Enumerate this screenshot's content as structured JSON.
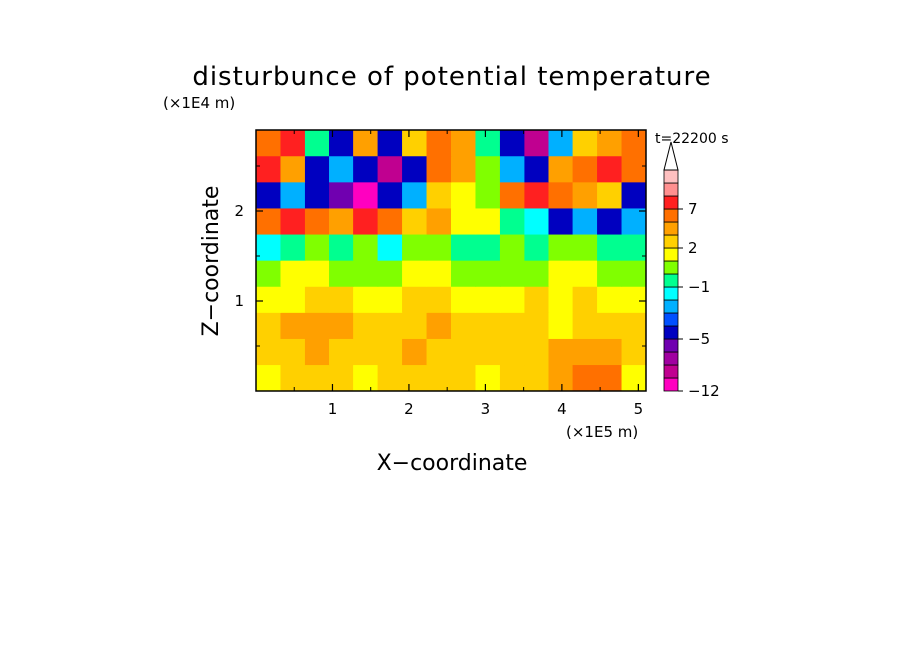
{
  "chart_data": {
    "type": "heatmap",
    "title": "disturbunce of potential temperature",
    "time_label": "t=22200 s",
    "xlabel": "X−coordinate",
    "ylabel": "Z−coordinate",
    "x_unit": "(×1E5 m)",
    "y_unit": "(×1E4 m)",
    "xlim": [
      0,
      5.1
    ],
    "ylim": [
      0,
      2.9
    ],
    "x_ticks": [
      1,
      2,
      3,
      4,
      5
    ],
    "y_ticks": [
      1,
      2
    ],
    "grid": false,
    "legend": "right colorbar",
    "colorbar": {
      "levels": [
        -12,
        -10,
        -8,
        -7,
        -5,
        -4,
        -3,
        -2,
        -1,
        0,
        1,
        2,
        3,
        5,
        7,
        9,
        11
      ],
      "colors": [
        "#ff00c0",
        "#c00090",
        "#a000a0",
        "#7000b0",
        "#0000c0",
        "#0050ff",
        "#00b0ff",
        "#00ffff",
        "#00ff90",
        "#80ff00",
        "#ffff00",
        "#ffd000",
        "#ffa000",
        "#ff7000",
        "#ff2020",
        "#ff9090",
        "#ffc0c0"
      ],
      "tick_labels": [
        "−12",
        "−5",
        "−1",
        "2",
        "7"
      ],
      "tick_values": [
        -12,
        -5,
        -1,
        2,
        7
      ],
      "extend_top": true
    },
    "grid_data": {
      "nx": 16,
      "nz": 10,
      "x_values": [
        0.16,
        0.48,
        0.8,
        1.11,
        1.43,
        1.75,
        2.07,
        2.39,
        2.71,
        3.03,
        3.35,
        3.67,
        3.98,
        4.3,
        4.62,
        4.94
      ],
      "z_values": [
        0.15,
        0.44,
        0.73,
        1.02,
        1.31,
        1.6,
        1.89,
        2.18,
        2.47,
        2.76
      ],
      "values": [
        [
          1,
          2,
          2,
          2,
          1,
          2,
          2,
          2,
          2,
          1,
          2,
          2,
          3,
          5,
          5,
          1
        ],
        [
          2,
          2,
          3,
          2,
          2,
          2,
          3,
          2,
          2,
          2,
          2,
          2,
          3,
          3,
          3,
          2
        ],
        [
          2,
          3,
          3,
          3,
          2,
          2,
          2,
          3,
          2,
          2,
          2,
          2,
          1,
          2,
          2,
          2
        ],
        [
          1,
          1,
          2,
          2,
          1,
          1,
          2,
          2,
          1,
          1,
          1,
          2,
          1,
          2,
          1,
          1
        ],
        [
          0,
          1,
          1,
          0,
          0,
          0,
          1,
          1,
          0,
          0,
          0,
          0,
          1,
          1,
          0,
          0
        ],
        [
          -2,
          -1,
          0,
          -1,
          0,
          -2,
          0,
          0,
          -1,
          -1,
          0,
          -1,
          0,
          0,
          -1,
          -1
        ],
        [
          5,
          7,
          5,
          3,
          7,
          5,
          2,
          3,
          1,
          1,
          -1,
          -2,
          -5,
          -3,
          -5,
          -3
        ],
        [
          -5,
          -3,
          -5,
          -7,
          -12,
          -5,
          -3,
          2,
          1,
          0,
          5,
          7,
          5,
          3,
          2,
          -5
        ],
        [
          7,
          3,
          -5,
          -3,
          -5,
          -10,
          -5,
          5,
          3,
          0,
          -3,
          -5,
          3,
          5,
          7,
          5
        ],
        [
          5,
          7,
          -1,
          -5,
          3,
          -5,
          2,
          5,
          3,
          -1,
          -5,
          -10,
          -3,
          2,
          3,
          5
        ]
      ]
    }
  }
}
